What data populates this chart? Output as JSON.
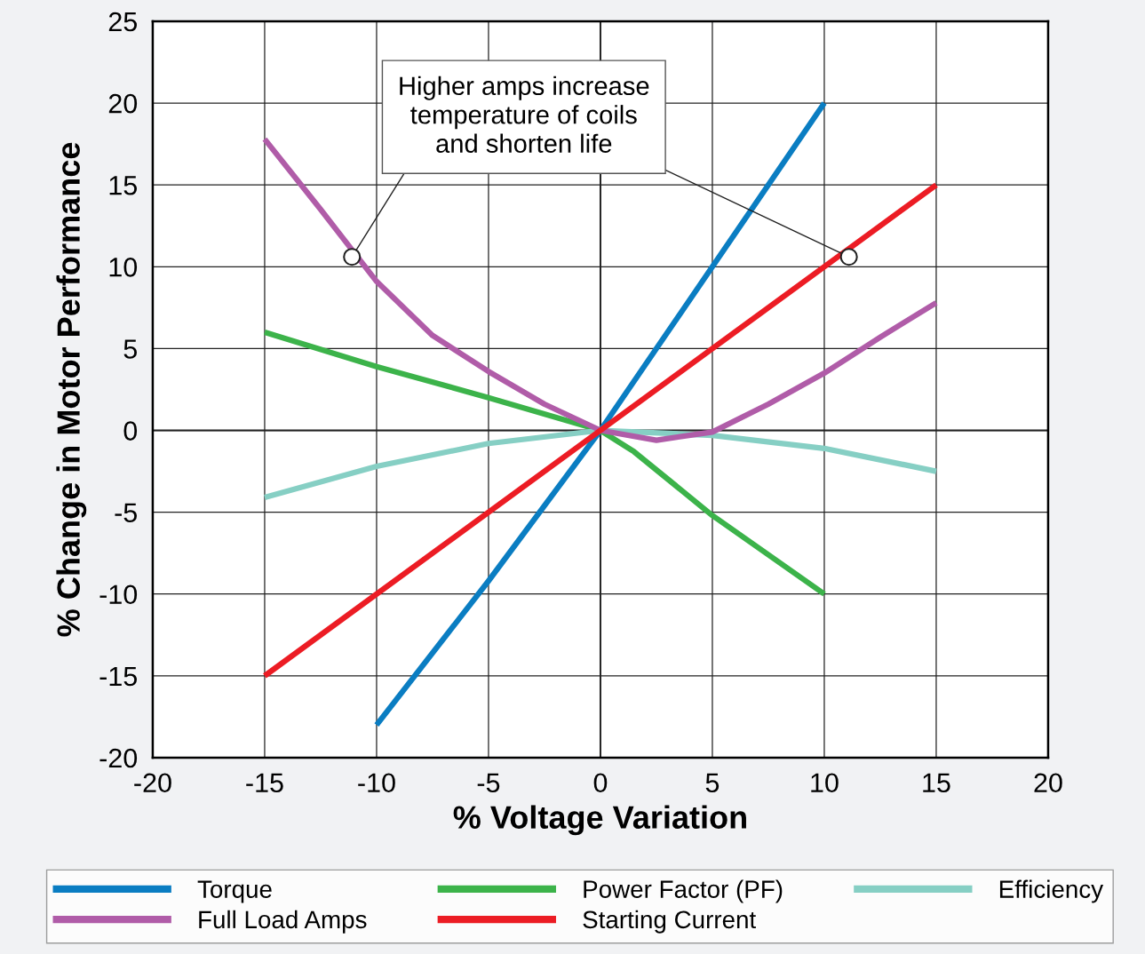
{
  "chart_data": {
    "type": "line",
    "xlabel": "% Voltage Variation",
    "ylabel": "% Change in Motor Performance",
    "xlim": [
      -20,
      20
    ],
    "xticks": [
      -20,
      -15,
      -10,
      -5,
      0,
      5,
      10,
      15,
      20
    ],
    "ylim": [
      -20,
      25
    ],
    "yticks": [
      -20,
      -15,
      -10,
      -5,
      0,
      5,
      10,
      15,
      20,
      25
    ],
    "grid": true,
    "legend": "bottom",
    "marker": "none",
    "line_style": "solid",
    "annotations": [
      {
        "text": "Higher amps increase\ntemperature of coils\nand shorten life",
        "x": -11.1,
        "y": 10.6
      }
    ],
    "series": [
      {
        "name": "Torque",
        "color": "#0a7dc2",
        "x": [
          -10,
          -5,
          0,
          5,
          10
        ],
        "values": [
          -18,
          -9.2,
          0,
          10,
          20
        ]
      },
      {
        "name": "Power Factor (PF)",
        "color": "#3cb34a",
        "x": [
          -15,
          -10,
          -5,
          0,
          1.5,
          5,
          10
        ],
        "values": [
          6,
          3.9,
          2,
          0,
          -1.3,
          -5.2,
          -10
        ]
      },
      {
        "name": "Efficiency",
        "color": "#86cfc4",
        "x": [
          -15,
          -10,
          -5,
          0,
          5,
          10,
          15
        ],
        "values": [
          -4.1,
          -2.2,
          -0.8,
          0,
          -0.3,
          -1.1,
          -2.5
        ]
      },
      {
        "name": "Full Load Amps",
        "color": "#b05ca8",
        "x": [
          -15,
          -12.5,
          -10,
          -7.5,
          -5,
          -2.5,
          0,
          2.5,
          5,
          7.5,
          10,
          12.5,
          15
        ],
        "values": [
          17.8,
          13.5,
          9.1,
          5.8,
          3.6,
          1.6,
          0,
          -0.6,
          -0.1,
          1.6,
          3.5,
          5.7,
          7.8
        ]
      },
      {
        "name": "Starting Current",
        "color": "#ec1c24",
        "x": [
          -15,
          0,
          15
        ],
        "values": [
          -15,
          0,
          15
        ]
      }
    ]
  }
}
